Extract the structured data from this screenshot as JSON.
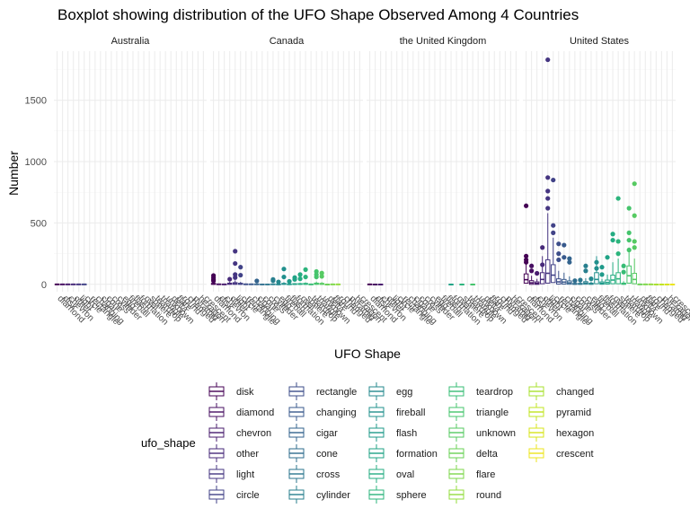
{
  "chart_data": {
    "type": "boxplot",
    "title": "Boxplot showing distribution of the UFO Shape Observed Among 4 Countries",
    "xlabel": "UFO Shape",
    "ylabel": "Number",
    "ylim": [
      -60,
      1900
    ],
    "yticks": [
      0,
      500,
      1000,
      1500
    ],
    "grid": true,
    "facets": [
      "Australia",
      "Canada",
      "the United Kingdom",
      "United States"
    ],
    "legend": {
      "title": "ufo_shape",
      "position": "bottom"
    },
    "categories": [
      "disk",
      "diamond",
      "chevron",
      "other",
      "light",
      "circle",
      "rectangle",
      "changing",
      "cigar",
      "cone",
      "cross",
      "cylinder",
      "egg",
      "fireball",
      "flash",
      "formation",
      "oval",
      "sphere",
      "teardrop",
      "triangle",
      "unknown",
      "delta",
      "flare",
      "round",
      "changed",
      "pyramid",
      "hexagon",
      "crescent"
    ],
    "colors": [
      "#440154",
      "#470f62",
      "#481c6e",
      "#472a7a",
      "#453581",
      "#414287",
      "#3d4e8a",
      "#38598c",
      "#33638d",
      "#2f6d8e",
      "#2b768e",
      "#287f8e",
      "#25888e",
      "#21908d",
      "#1f9a8a",
      "#20a386",
      "#24ac82",
      "#2cb47c",
      "#37bc75",
      "#45c46c",
      "#56ca62",
      "#6ad156",
      "#7ed74b",
      "#93dc3e",
      "#a9e02f",
      "#c0e420",
      "#d7e41b",
      "#ece51c"
    ],
    "x_tick_labels": [
      "diamond",
      "disk",
      "chevron",
      "other",
      "light",
      "circle",
      "rectangle",
      "changing",
      "cigar",
      "cone",
      "cross",
      "cylinder",
      "egg",
      "fireball",
      "flash",
      "formation",
      "oval",
      "sphere",
      "teardrop",
      "triangle",
      "unknown",
      "delta",
      "flare",
      "round",
      "changed",
      "pyramid",
      "hexagon",
      "crescent"
    ],
    "panels": [
      {
        "country": "Australia",
        "boxes": [
          {
            "shape": "disk",
            "q1": 0,
            "median": 1,
            "q3": 2,
            "upper": 4
          },
          {
            "shape": "diamond",
            "q1": 0,
            "median": 1,
            "q3": 2,
            "upper": 3
          },
          {
            "shape": "chevron",
            "q1": 0,
            "median": 1,
            "q3": 2,
            "upper": 3
          },
          {
            "shape": "other",
            "q1": 0,
            "median": 1,
            "q3": 2,
            "upper": 4
          },
          {
            "shape": "light",
            "q1": 0,
            "median": 1,
            "q3": 2,
            "upper": 4
          },
          {
            "shape": "circle",
            "q1": 0,
            "median": 1,
            "q3": 2,
            "upper": 3
          }
        ],
        "outliers": []
      },
      {
        "country": "Canada",
        "boxes": [
          {
            "shape": "disk",
            "q1": 0,
            "median": 3,
            "q3": 8,
            "upper": 20
          },
          {
            "shape": "diamond",
            "q1": 0,
            "median": 1,
            "q3": 3,
            "upper": 6
          },
          {
            "shape": "chevron",
            "q1": 0,
            "median": 1,
            "q3": 2,
            "upper": 4
          },
          {
            "shape": "other",
            "q1": 0,
            "median": 4,
            "q3": 10,
            "upper": 22
          },
          {
            "shape": "light",
            "q1": 0,
            "median": 5,
            "q3": 14,
            "upper": 32
          },
          {
            "shape": "circle",
            "q1": 0,
            "median": 3,
            "q3": 9,
            "upper": 20
          },
          {
            "shape": "rectangle",
            "q1": 0,
            "median": 1,
            "q3": 3,
            "upper": 7
          },
          {
            "shape": "changing",
            "q1": 0,
            "median": 1,
            "q3": 3,
            "upper": 6
          },
          {
            "shape": "cigar",
            "q1": 0,
            "median": 1,
            "q3": 3,
            "upper": 7
          },
          {
            "shape": "cone",
            "q1": 0,
            "median": 0,
            "q3": 2,
            "upper": 4
          },
          {
            "shape": "cross",
            "q1": 0,
            "median": 0,
            "q3": 2,
            "upper": 3
          },
          {
            "shape": "cylinder",
            "q1": 0,
            "median": 1,
            "q3": 3,
            "upper": 6
          },
          {
            "shape": "egg",
            "q1": 0,
            "median": 0,
            "q3": 2,
            "upper": 4
          },
          {
            "shape": "fireball",
            "q1": 0,
            "median": 3,
            "q3": 8,
            "upper": 18
          },
          {
            "shape": "flash",
            "q1": 0,
            "median": 1,
            "q3": 3,
            "upper": 6
          },
          {
            "shape": "formation",
            "q1": 0,
            "median": 2,
            "q3": 5,
            "upper": 10
          },
          {
            "shape": "oval",
            "q1": 0,
            "median": 2,
            "q3": 6,
            "upper": 12
          },
          {
            "shape": "sphere",
            "q1": 0,
            "median": 3,
            "q3": 8,
            "upper": 16
          },
          {
            "shape": "teardrop",
            "q1": 0,
            "median": 1,
            "q3": 2,
            "upper": 4
          },
          {
            "shape": "triangle",
            "q1": 0,
            "median": 4,
            "q3": 10,
            "upper": 22
          },
          {
            "shape": "unknown",
            "q1": 0,
            "median": 3,
            "q3": 8,
            "upper": 18
          },
          {
            "shape": "delta",
            "q1": 0,
            "median": 0,
            "q3": 1,
            "upper": 2
          },
          {
            "shape": "flare",
            "q1": 0,
            "median": 1,
            "q3": 2,
            "upper": 4
          },
          {
            "shape": "round",
            "q1": 0,
            "median": 1,
            "q3": 2,
            "upper": 4
          }
        ],
        "outliers": [
          {
            "shape": "disk",
            "values": [
              72,
              55,
              40,
              28
            ]
          },
          {
            "shape": "other",
            "values": [
              42
            ]
          },
          {
            "shape": "light",
            "values": [
              270,
              170,
              80,
              55
            ]
          },
          {
            "shape": "circle",
            "values": [
              140,
              75
            ]
          },
          {
            "shape": "cigar",
            "values": [
              28
            ]
          },
          {
            "shape": "cylinder",
            "values": [
              40,
              30
            ]
          },
          {
            "shape": "egg",
            "values": [
              20
            ]
          },
          {
            "shape": "fireball",
            "values": [
              125,
              60
            ]
          },
          {
            "shape": "flash",
            "values": [
              24
            ]
          },
          {
            "shape": "formation",
            "values": [
              55,
              40
            ]
          },
          {
            "shape": "oval",
            "values": [
              80,
              45
            ]
          },
          {
            "shape": "sphere",
            "values": [
              120,
              60
            ]
          },
          {
            "shape": "triangle",
            "values": [
              105,
              80,
              60
            ]
          },
          {
            "shape": "unknown",
            "values": [
              92,
              65
            ]
          }
        ]
      },
      {
        "country": "the United Kingdom",
        "boxes": [
          {
            "shape": "disk",
            "q1": 0,
            "median": 1,
            "q3": 2,
            "upper": 3
          },
          {
            "shape": "diamond",
            "q1": 0,
            "median": 0,
            "q3": 1,
            "upper": 2
          },
          {
            "shape": "chevron",
            "q1": 0,
            "median": 0,
            "q3": 1,
            "upper": 2
          },
          {
            "shape": "formation",
            "q1": 0,
            "median": 0,
            "q3": 1,
            "upper": 2
          },
          {
            "shape": "sphere",
            "q1": 0,
            "median": 0,
            "q3": 1,
            "upper": 2
          },
          {
            "shape": "triangle",
            "q1": 0,
            "median": 0,
            "q3": 1,
            "upper": 2
          }
        ],
        "outliers": []
      },
      {
        "country": "United States",
        "boxes": [
          {
            "shape": "disk",
            "q1": 10,
            "median": 38,
            "q3": 85,
            "upper": 210
          },
          {
            "shape": "diamond",
            "q1": 0,
            "median": 12,
            "q3": 30,
            "upper": 70
          },
          {
            "shape": "chevron",
            "q1": 0,
            "median": 8,
            "q3": 20,
            "upper": 45
          },
          {
            "shape": "other",
            "q1": 5,
            "median": 40,
            "q3": 95,
            "upper": 230
          },
          {
            "shape": "light",
            "q1": 10,
            "median": 90,
            "q3": 200,
            "upper": 580
          },
          {
            "shape": "circle",
            "q1": 15,
            "median": 75,
            "q3": 160,
            "upper": 380
          },
          {
            "shape": "rectangle",
            "q1": 2,
            "median": 20,
            "q3": 45,
            "upper": 110
          },
          {
            "shape": "changing",
            "q1": 2,
            "median": 18,
            "q3": 40,
            "upper": 95
          },
          {
            "shape": "cigar",
            "q1": 1,
            "median": 12,
            "q3": 28,
            "upper": 65
          },
          {
            "shape": "cone",
            "q1": 0,
            "median": 3,
            "q3": 8,
            "upper": 18
          },
          {
            "shape": "cross",
            "q1": 0,
            "median": 3,
            "q3": 8,
            "upper": 18
          },
          {
            "shape": "cylinder",
            "q1": 1,
            "median": 10,
            "q3": 22,
            "upper": 50
          },
          {
            "shape": "egg",
            "q1": 0,
            "median": 4,
            "q3": 10,
            "upper": 22
          },
          {
            "shape": "fireball",
            "q1": 5,
            "median": 40,
            "q3": 95,
            "upper": 230
          },
          {
            "shape": "flash",
            "q1": 1,
            "median": 8,
            "q3": 20,
            "upper": 45
          },
          {
            "shape": "formation",
            "q1": 2,
            "median": 15,
            "q3": 35,
            "upper": 80
          },
          {
            "shape": "oval",
            "q1": 5,
            "median": 35,
            "q3": 75,
            "upper": 180
          },
          {
            "shape": "sphere",
            "q1": 5,
            "median": 45,
            "q3": 95,
            "upper": 210
          },
          {
            "shape": "teardrop",
            "q1": 0,
            "median": 4,
            "q3": 10,
            "upper": 25
          },
          {
            "shape": "triangle",
            "q1": 10,
            "median": 70,
            "q3": 150,
            "upper": 300
          },
          {
            "shape": "unknown",
            "q1": 5,
            "median": 40,
            "q3": 90,
            "upper": 210
          },
          {
            "shape": "delta",
            "q1": 0,
            "median": 1,
            "q3": 2,
            "upper": 4
          },
          {
            "shape": "flare",
            "q1": 0,
            "median": 1,
            "q3": 2,
            "upper": 4
          },
          {
            "shape": "round",
            "q1": 0,
            "median": 1,
            "q3": 2,
            "upper": 4
          },
          {
            "shape": "changed",
            "q1": 0,
            "median": 0,
            "q3": 1,
            "upper": 2
          },
          {
            "shape": "pyramid",
            "q1": 0,
            "median": 0,
            "q3": 1,
            "upper": 2
          },
          {
            "shape": "hexagon",
            "q1": 0,
            "median": 0,
            "q3": 1,
            "upper": 2
          },
          {
            "shape": "crescent",
            "q1": 0,
            "median": 0,
            "q3": 1,
            "upper": 2
          }
        ],
        "outliers": [
          {
            "shape": "disk",
            "values": [
              640,
              230,
              200,
              180
            ]
          },
          {
            "shape": "diamond",
            "values": [
              150,
              110
            ]
          },
          {
            "shape": "chevron",
            "values": [
              90
            ]
          },
          {
            "shape": "other",
            "values": [
              300,
              160
            ]
          },
          {
            "shape": "light",
            "values": [
              1830,
              870,
              760,
              700,
              620
            ]
          },
          {
            "shape": "circle",
            "values": [
              850,
              480,
              420
            ]
          },
          {
            "shape": "rectangle",
            "values": [
              330,
              250,
              200
            ]
          },
          {
            "shape": "changing",
            "values": [
              320,
              220
            ]
          },
          {
            "shape": "cigar",
            "values": [
              210,
              180
            ]
          },
          {
            "shape": "cone",
            "values": [
              30
            ]
          },
          {
            "shape": "cross",
            "values": [
              35
            ]
          },
          {
            "shape": "cylinder",
            "values": [
              150,
              110
            ]
          },
          {
            "shape": "egg",
            "values": [
              45
            ]
          },
          {
            "shape": "fireball",
            "values": [
              180,
              130
            ]
          },
          {
            "shape": "flash",
            "values": [
              140,
              80
            ]
          },
          {
            "shape": "formation",
            "values": [
              220
            ]
          },
          {
            "shape": "oval",
            "values": [
              410,
              360
            ]
          },
          {
            "shape": "sphere",
            "values": [
              700,
              350,
              250
            ]
          },
          {
            "shape": "teardrop",
            "values": [
              150,
              100
            ]
          },
          {
            "shape": "triangle",
            "values": [
              620,
              420,
              360,
              280
            ]
          },
          {
            "shape": "unknown",
            "values": [
              820,
              560,
              350,
              300
            ]
          }
        ]
      }
    ]
  }
}
